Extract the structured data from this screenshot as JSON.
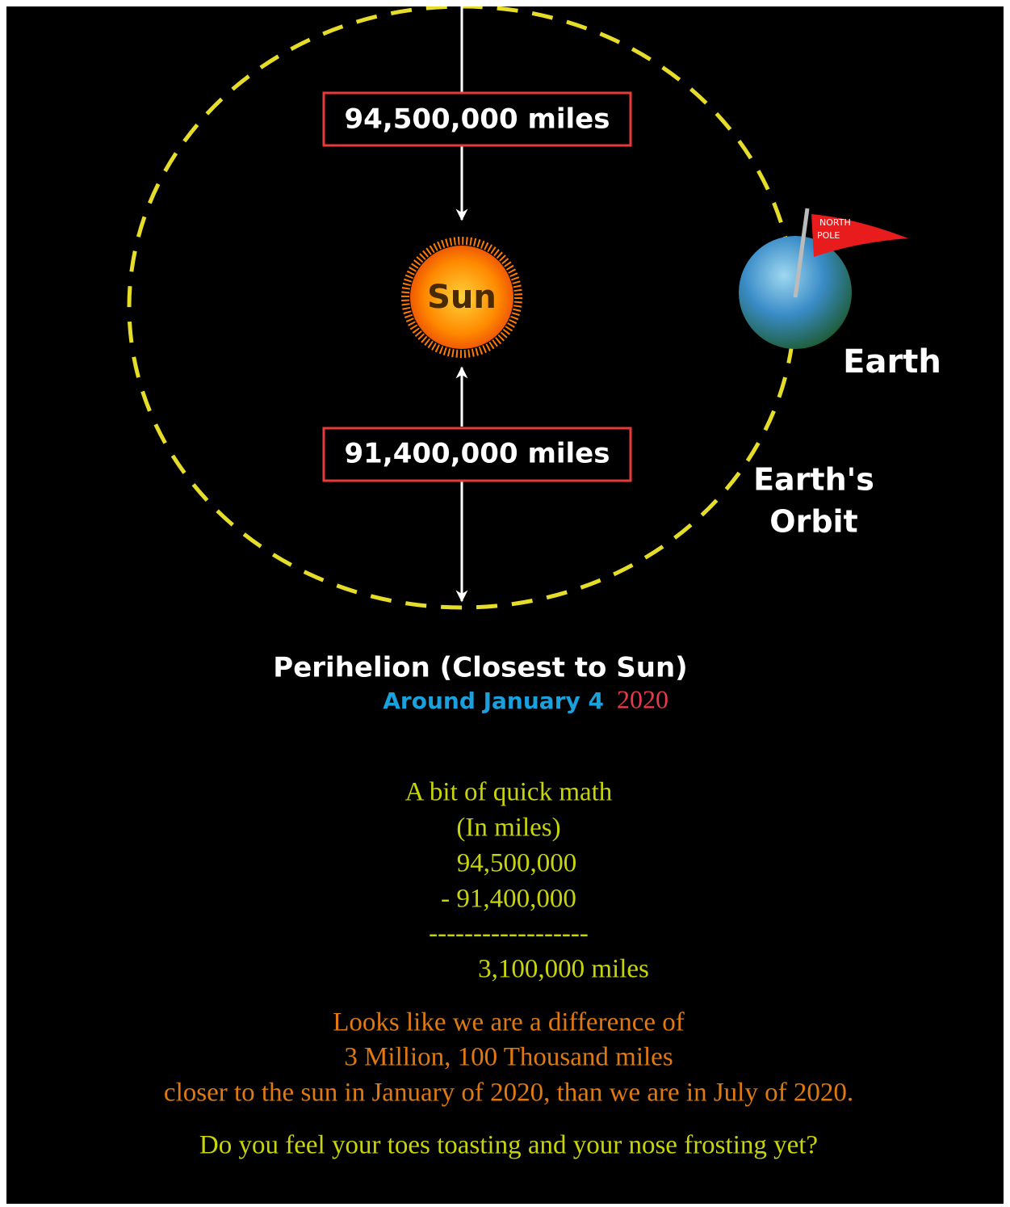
{
  "diagram": {
    "top_distance": "94,500,000 miles",
    "bottom_distance": "91,400,000 miles",
    "sun": "Sun",
    "earth": "Earth",
    "flag": [
      "NORTH",
      "POLE"
    ],
    "orbit": [
      "Earth's",
      "Orbit"
    ],
    "caption": "Perihelion (Closest to Sun)",
    "date": "Around January 4",
    "year": "2020"
  },
  "math": {
    "title": "A bit of quick math",
    "unit": "(In miles)",
    "lines": [
      "94,500,000",
      "- 91,400,000",
      "------------------",
      "3,100,000 miles"
    ]
  },
  "conclusion": [
    "Looks like we are a difference of",
    "3 Million, 100 Thousand miles",
    "closer to the sun in January of 2020, than we are in July of 2020."
  ],
  "question": "Do you feel your toes toasting and your nose frosting yet?"
}
